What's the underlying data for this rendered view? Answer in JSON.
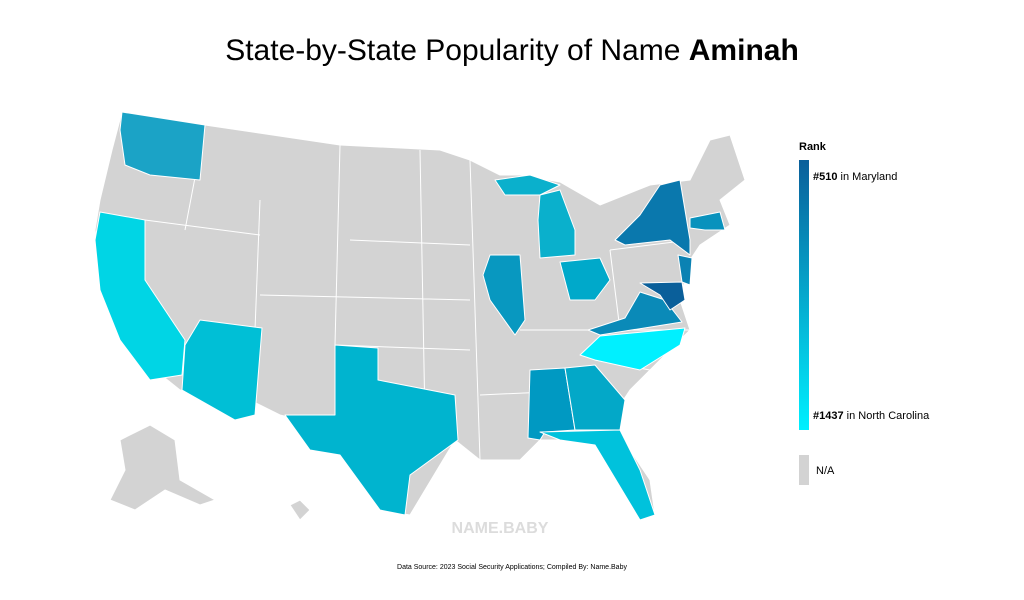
{
  "title": {
    "text": "State-by-State Popularity of Name ",
    "name": "Aminah"
  },
  "legend": {
    "title": "Rank",
    "max": {
      "rank": "#510",
      "label": " in Maryland",
      "color": "#0a5f9a"
    },
    "min": {
      "rank": "#1437",
      "label": " in North Carolina",
      "color": "#00f0ff"
    },
    "na": {
      "label": "N/A",
      "color": "#d3d3d3"
    }
  },
  "watermark": "NAME.BABY",
  "footer": "Data Source: 2023 Social Security Applications; Compiled By: Name.Baby"
}
